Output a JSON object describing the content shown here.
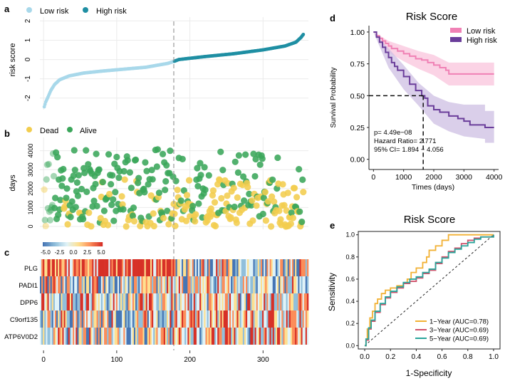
{
  "colors": {
    "low": "#a8d8ea",
    "high": "#1f8fa3",
    "dead": "#f2cd4e",
    "alive": "#3aa65a",
    "km_low": "#f081b5",
    "km_low_band": "#f9c4dc",
    "km_high": "#6a3d9a",
    "km_high_band": "#cdbfe3",
    "roc1": "#f2b134",
    "roc3": "#d1516b",
    "roc5": "#2aa59b",
    "grid": "#ebebeb"
  },
  "chart_data": [
    {
      "id": "a",
      "panel_label": "a",
      "type": "scatter",
      "legend": [
        "Low risk",
        "High risk"
      ],
      "ylabel": "risk score",
      "yticks": [
        -2,
        -1,
        0,
        1,
        2
      ],
      "ylim": [
        -2.6,
        2.2
      ],
      "xlim": [
        -5,
        362
      ],
      "n_low": 178,
      "n_total": 355,
      "cutoff_x": 178,
      "risk_curve": [
        [
          1,
          -2.45
        ],
        [
          3,
          -2.2
        ],
        [
          6,
          -1.95
        ],
        [
          10,
          -1.6
        ],
        [
          15,
          -1.3
        ],
        [
          22,
          -1.05
        ],
        [
          35,
          -0.85
        ],
        [
          55,
          -0.7
        ],
        [
          80,
          -0.6
        ],
        [
          110,
          -0.5
        ],
        [
          140,
          -0.4
        ],
        [
          170,
          -0.2
        ],
        [
          178,
          -0.1
        ],
        [
          185,
          0.0
        ],
        [
          220,
          0.15
        ],
        [
          260,
          0.3
        ],
        [
          300,
          0.5
        ],
        [
          330,
          0.7
        ],
        [
          345,
          0.9
        ],
        [
          352,
          1.15
        ],
        [
          355,
          1.3
        ],
        [
          357,
          1.6
        ],
        [
          358,
          1.9
        ]
      ]
    },
    {
      "id": "b",
      "panel_label": "b",
      "type": "scatter",
      "legend": [
        "Dead",
        "Alive"
      ],
      "ylabel": "days",
      "yticks": [
        0,
        1000,
        2000,
        3000,
        4000
      ],
      "ylim": [
        -150,
        4700
      ],
      "xlim": [
        -5,
        362
      ],
      "n_points": 355,
      "cutoff_x": 178
    },
    {
      "id": "c",
      "panel_label": "c",
      "type": "heatmap",
      "legend_ticks": [
        "-5.0",
        "-2.5",
        "0.0",
        "2.5",
        "5.0"
      ],
      "genes": [
        "PLG",
        "PADI1",
        "DPP6",
        "C9orf135",
        "ATP6V0D2"
      ],
      "xticks": [
        0,
        100,
        200,
        300
      ],
      "xlim": [
        -5,
        362
      ],
      "cutoff_x": 178
    },
    {
      "id": "d",
      "panel_label": "d",
      "type": "line",
      "title": "Risk Score",
      "xlabel": "Times (days)",
      "ylabel": "Survival Probability",
      "xticks": [
        0,
        1000,
        2000,
        3000,
        4000
      ],
      "yticks": [
        "0.00",
        "0.25",
        "0.50",
        "0.75",
        "1.00"
      ],
      "xlim": [
        -150,
        4150
      ],
      "ylim": [
        -0.08,
        1.05
      ],
      "legend": [
        "Low risk",
        "High risk"
      ],
      "median_high_days": 1650,
      "stats": {
        "p": "p= 4.49e−08",
        "hr": "Hazard Ratio= 2.771",
        "ci": "95% CI= 1.894 − 4.056"
      },
      "series": [
        {
          "name": "Low risk",
          "points": [
            [
              0,
              1.0
            ],
            [
              100,
              0.97
            ],
            [
              200,
              0.95
            ],
            [
              300,
              0.93
            ],
            [
              400,
              0.91
            ],
            [
              500,
              0.89
            ],
            [
              600,
              0.87
            ],
            [
              800,
              0.85
            ],
            [
              1000,
              0.83
            ],
            [
              1200,
              0.81
            ],
            [
              1400,
              0.79
            ],
            [
              1600,
              0.78
            ],
            [
              1800,
              0.76
            ],
            [
              2000,
              0.74
            ],
            [
              2200,
              0.72
            ],
            [
              2400,
              0.7
            ],
            [
              2500,
              0.67
            ],
            [
              4000,
              0.67
            ]
          ],
          "ci_low": [
            [
              0,
              1.0
            ],
            [
              500,
              0.84
            ],
            [
              1000,
              0.77
            ],
            [
              1500,
              0.71
            ],
            [
              2000,
              0.66
            ],
            [
              2500,
              0.58
            ],
            [
              4000,
              0.58
            ]
          ],
          "ci_high": [
            [
              0,
              1.0
            ],
            [
              500,
              0.93
            ],
            [
              1000,
              0.89
            ],
            [
              1500,
              0.85
            ],
            [
              2000,
              0.82
            ],
            [
              2500,
              0.76
            ],
            [
              4000,
              0.76
            ]
          ]
        },
        {
          "name": "High risk",
          "points": [
            [
              0,
              1.0
            ],
            [
              100,
              0.96
            ],
            [
              200,
              0.92
            ],
            [
              300,
              0.88
            ],
            [
              400,
              0.84
            ],
            [
              500,
              0.8
            ],
            [
              600,
              0.76
            ],
            [
              700,
              0.73
            ],
            [
              800,
              0.7
            ],
            [
              1000,
              0.65
            ],
            [
              1200,
              0.59
            ],
            [
              1400,
              0.54
            ],
            [
              1600,
              0.5
            ],
            [
              1700,
              0.48
            ],
            [
              1800,
              0.42
            ],
            [
              2000,
              0.39
            ],
            [
              2200,
              0.37
            ],
            [
              2500,
              0.34
            ],
            [
              2800,
              0.32
            ],
            [
              3000,
              0.3
            ],
            [
              3200,
              0.27
            ],
            [
              3700,
              0.27
            ],
            [
              3700,
              0.25
            ],
            [
              4000,
              0.25
            ]
          ],
          "ci_low": [
            [
              0,
              1.0
            ],
            [
              500,
              0.72
            ],
            [
              1000,
              0.55
            ],
            [
              1500,
              0.42
            ],
            [
              2000,
              0.28
            ],
            [
              2500,
              0.22
            ],
            [
              3000,
              0.18
            ],
            [
              3700,
              0.16
            ],
            [
              3700,
              0.13
            ],
            [
              4000,
              0.13
            ]
          ],
          "ci_high": [
            [
              0,
              1.0
            ],
            [
              500,
              0.87
            ],
            [
              1000,
              0.74
            ],
            [
              1500,
              0.6
            ],
            [
              2000,
              0.5
            ],
            [
              2500,
              0.45
            ],
            [
              3000,
              0.43
            ],
            [
              3700,
              0.43
            ],
            [
              3700,
              0.38
            ],
            [
              4000,
              0.38
            ]
          ]
        }
      ]
    },
    {
      "id": "e",
      "panel_label": "e",
      "type": "line",
      "title": "Risk Score",
      "xlabel": "1-Specificity",
      "ylabel": "Sensitivity",
      "xticks": [
        "0.0",
        "0.2",
        "0.4",
        "0.6",
        "0.8",
        "1.0"
      ],
      "yticks": [
        "0.0",
        "0.2",
        "0.4",
        "0.6",
        "0.8",
        "1.0"
      ],
      "xlim": [
        -0.05,
        1.05
      ],
      "ylim": [
        -0.03,
        1.03
      ],
      "series": [
        {
          "name": "1−Year (AUC=0.78)",
          "points": [
            [
              0,
              0
            ],
            [
              0.01,
              0.05
            ],
            [
              0.02,
              0.15
            ],
            [
              0.04,
              0.25
            ],
            [
              0.06,
              0.31
            ],
            [
              0.08,
              0.38
            ],
            [
              0.1,
              0.42
            ],
            [
              0.13,
              0.47
            ],
            [
              0.16,
              0.5
            ],
            [
              0.2,
              0.52
            ],
            [
              0.25,
              0.54
            ],
            [
              0.3,
              0.56
            ],
            [
              0.33,
              0.6
            ],
            [
              0.36,
              0.66
            ],
            [
              0.4,
              0.7
            ],
            [
              0.45,
              0.75
            ],
            [
              0.48,
              0.8
            ],
            [
              0.5,
              0.86
            ],
            [
              0.55,
              0.9
            ],
            [
              0.6,
              0.95
            ],
            [
              0.65,
              1.0
            ],
            [
              1.0,
              1.0
            ]
          ]
        },
        {
          "name": "3−Year (AUC=0.69)",
          "points": [
            [
              0,
              0
            ],
            [
              0.01,
              0.05
            ],
            [
              0.03,
              0.15
            ],
            [
              0.05,
              0.22
            ],
            [
              0.08,
              0.3
            ],
            [
              0.12,
              0.37
            ],
            [
              0.16,
              0.43
            ],
            [
              0.2,
              0.48
            ],
            [
              0.25,
              0.52
            ],
            [
              0.3,
              0.56
            ],
            [
              0.35,
              0.58
            ],
            [
              0.4,
              0.61
            ],
            [
              0.45,
              0.65
            ],
            [
              0.5,
              0.68
            ],
            [
              0.55,
              0.74
            ],
            [
              0.6,
              0.8
            ],
            [
              0.65,
              0.85
            ],
            [
              0.7,
              0.88
            ],
            [
              0.75,
              0.92
            ],
            [
              0.8,
              0.95
            ],
            [
              0.85,
              0.97
            ],
            [
              0.9,
              0.98
            ],
            [
              1.0,
              1.0
            ]
          ]
        },
        {
          "name": "5−Year (AUC=0.69)",
          "points": [
            [
              0,
              0
            ],
            [
              0.01,
              0.06
            ],
            [
              0.03,
              0.16
            ],
            [
              0.05,
              0.23
            ],
            [
              0.08,
              0.31
            ],
            [
              0.12,
              0.38
            ],
            [
              0.16,
              0.44
            ],
            [
              0.2,
              0.49
            ],
            [
              0.25,
              0.53
            ],
            [
              0.3,
              0.57
            ],
            [
              0.35,
              0.6
            ],
            [
              0.4,
              0.62
            ],
            [
              0.45,
              0.66
            ],
            [
              0.5,
              0.69
            ],
            [
              0.55,
              0.75
            ],
            [
              0.6,
              0.79
            ],
            [
              0.65,
              0.84
            ],
            [
              0.7,
              0.87
            ],
            [
              0.75,
              0.9
            ],
            [
              0.8,
              0.93
            ],
            [
              0.85,
              0.96
            ],
            [
              0.9,
              0.98
            ],
            [
              1.0,
              1.0
            ]
          ]
        }
      ]
    }
  ]
}
